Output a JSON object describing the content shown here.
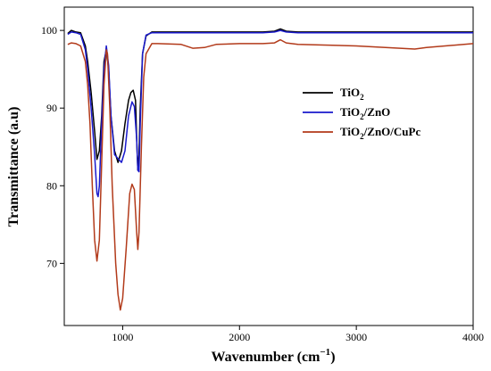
{
  "chart_data": {
    "type": "line",
    "title": "",
    "xlabel": "Wavenumber (cm",
    "xlabel_exponent": "−1",
    "xlabel_suffix": ")",
    "ylabel": "Transmittance (a.u)",
    "xlim": [
      500,
      4000
    ],
    "ylim": [
      62,
      103
    ],
    "x_ticks": [
      1000,
      2000,
      3000,
      4000
    ],
    "x_tick_labels": [
      "1000",
      "2000",
      "3000",
      "4000"
    ],
    "y_ticks": [
      70,
      80,
      90,
      100
    ],
    "y_tick_labels": [
      "70",
      "80",
      "90",
      "100"
    ],
    "grid": false,
    "legend_position": "right",
    "series": [
      {
        "name": "TiO2",
        "legend_label": {
          "base": "TiO",
          "sub": "2",
          "rest": ""
        },
        "color": "#000000",
        "x": [
          530,
          560,
          600,
          640,
          680,
          700,
          730,
          760,
          780,
          800,
          820,
          840,
          860,
          880,
          900,
          930,
          960,
          990,
          1020,
          1050,
          1070,
          1090,
          1110,
          1120,
          1130,
          1140,
          1150,
          1170,
          1200,
          1250,
          1300,
          1500,
          1800,
          2000,
          2200,
          2300,
          2350,
          2400,
          2500,
          3000,
          3500,
          4000
        ],
        "y": [
          99.6,
          100.0,
          99.8,
          99.7,
          98.0,
          96.0,
          92.0,
          87.0,
          83.4,
          84.5,
          89.0,
          96.0,
          97.5,
          95.0,
          89.0,
          84.5,
          83.0,
          84.5,
          88.0,
          91.0,
          92.0,
          92.3,
          91.0,
          86.0,
          82.0,
          84.0,
          90.0,
          97.0,
          99.3,
          99.8,
          99.8,
          99.8,
          99.8,
          99.8,
          99.8,
          99.9,
          100.2,
          99.9,
          99.8,
          99.8,
          99.8,
          99.8
        ]
      },
      {
        "name": "TiO2/ZnO",
        "legend_label": {
          "base": "TiO",
          "sub": "2",
          "rest": "/ZnO"
        },
        "color": "#1a1acc",
        "x": [
          530,
          560,
          600,
          640,
          680,
          700,
          730,
          760,
          780,
          790,
          800,
          820,
          840,
          860,
          880,
          900,
          930,
          960,
          990,
          1020,
          1050,
          1080,
          1100,
          1120,
          1130,
          1140,
          1150,
          1170,
          1200,
          1250,
          1300,
          1500,
          1800,
          2000,
          2200,
          2300,
          2350,
          2400,
          2500,
          3000,
          3500,
          4000
        ],
        "y": [
          99.5,
          99.8,
          99.7,
          99.5,
          97.5,
          95.0,
          90.0,
          84.0,
          79.0,
          78.6,
          80.0,
          88.0,
          95.0,
          98.0,
          95.5,
          89.0,
          84.0,
          83.5,
          83.0,
          84.5,
          89.0,
          90.8,
          90.2,
          86.0,
          82.0,
          81.8,
          88.0,
          97.0,
          99.4,
          99.7,
          99.7,
          99.7,
          99.7,
          99.7,
          99.7,
          99.8,
          100.0,
          99.8,
          99.7,
          99.7,
          99.7,
          99.7
        ]
      },
      {
        "name": "TiO2/ZnO/CuPc",
        "legend_label": {
          "base": "TiO",
          "sub": "2",
          "rest": "/ZnO/CuPc"
        },
        "color": "#b23a1a",
        "x": [
          530,
          560,
          600,
          640,
          680,
          700,
          720,
          740,
          760,
          780,
          800,
          820,
          840,
          860,
          870,
          890,
          910,
          940,
          960,
          980,
          1000,
          1030,
          1060,
          1080,
          1100,
          1120,
          1130,
          1140,
          1160,
          1180,
          1200,
          1250,
          1300,
          1500,
          1600,
          1700,
          1800,
          2000,
          2200,
          2300,
          2350,
          2400,
          2500,
          3000,
          3500,
          3600,
          4000
        ],
        "y": [
          98.2,
          98.4,
          98.3,
          98.0,
          96.0,
          93.0,
          88.0,
          80.0,
          73.0,
          70.3,
          73.0,
          83.0,
          93.0,
          97.5,
          97.0,
          90.0,
          80.0,
          70.0,
          66.0,
          64.0,
          65.5,
          72.0,
          79.0,
          80.2,
          79.5,
          74.0,
          71.8,
          74.0,
          85.0,
          94.0,
          97.0,
          98.3,
          98.3,
          98.2,
          97.7,
          97.8,
          98.2,
          98.3,
          98.3,
          98.4,
          98.8,
          98.4,
          98.2,
          98.0,
          97.6,
          97.8,
          98.3
        ]
      }
    ]
  }
}
